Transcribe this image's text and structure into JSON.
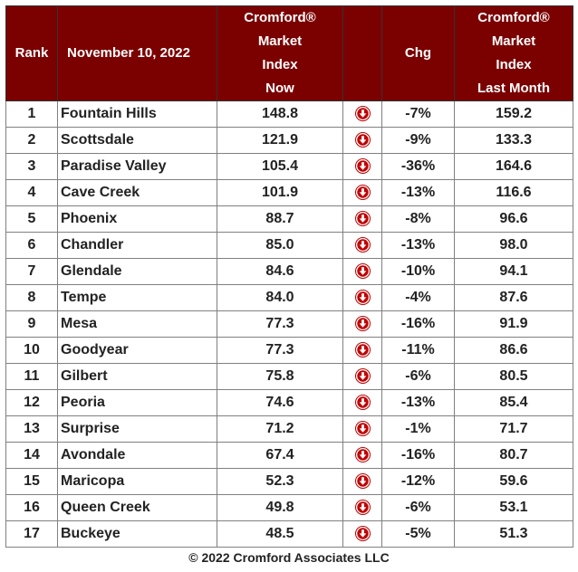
{
  "header": {
    "rank": "Rank",
    "date": "November 10, 2022",
    "index_now": [
      "Cromford®",
      "Market",
      "Index",
      "Now"
    ],
    "chg": "Chg",
    "index_last": [
      "Cromford®",
      "Market",
      "Index",
      "Last Month"
    ]
  },
  "rows": [
    {
      "rank": "1",
      "city": "Fountain Hills",
      "now": "148.8",
      "trend": "down",
      "chg": "-7%",
      "last": "159.2"
    },
    {
      "rank": "2",
      "city": "Scottsdale",
      "now": "121.9",
      "trend": "down",
      "chg": "-9%",
      "last": "133.3"
    },
    {
      "rank": "3",
      "city": "Paradise Valley",
      "now": "105.4",
      "trend": "down",
      "chg": "-36%",
      "last": "164.6"
    },
    {
      "rank": "4",
      "city": "Cave Creek",
      "now": "101.9",
      "trend": "down",
      "chg": "-13%",
      "last": "116.6"
    },
    {
      "rank": "5",
      "city": "Phoenix",
      "now": "88.7",
      "trend": "down",
      "chg": "-8%",
      "last": "96.6"
    },
    {
      "rank": "6",
      "city": "Chandler",
      "now": "85.0",
      "trend": "down",
      "chg": "-13%",
      "last": "98.0"
    },
    {
      "rank": "7",
      "city": "Glendale",
      "now": "84.6",
      "trend": "down",
      "chg": "-10%",
      "last": "94.1"
    },
    {
      "rank": "8",
      "city": "Tempe",
      "now": "84.0",
      "trend": "down",
      "chg": "-4%",
      "last": "87.6"
    },
    {
      "rank": "9",
      "city": "Mesa",
      "now": "77.3",
      "trend": "down",
      "chg": "-16%",
      "last": "91.9"
    },
    {
      "rank": "10",
      "city": "Goodyear",
      "now": "77.3",
      "trend": "down",
      "chg": "-11%",
      "last": "86.6"
    },
    {
      "rank": "11",
      "city": "Gilbert",
      "now": "75.8",
      "trend": "down",
      "chg": "-6%",
      "last": "80.5"
    },
    {
      "rank": "12",
      "city": "Peoria",
      "now": "74.6",
      "trend": "down",
      "chg": "-13%",
      "last": "85.4"
    },
    {
      "rank": "13",
      "city": "Surprise",
      "now": "71.2",
      "trend": "down",
      "chg": "-1%",
      "last": "71.7"
    },
    {
      "rank": "14",
      "city": "Avondale",
      "now": "67.4",
      "trend": "down",
      "chg": "-16%",
      "last": "80.7"
    },
    {
      "rank": "15",
      "city": "Maricopa",
      "now": "52.3",
      "trend": "down",
      "chg": "-12%",
      "last": "59.6"
    },
    {
      "rank": "16",
      "city": "Queen Creek",
      "now": "49.8",
      "trend": "down",
      "chg": "-6%",
      "last": "53.1"
    },
    {
      "rank": "17",
      "city": "Buckeye",
      "now": "48.5",
      "trend": "down",
      "chg": "-5%",
      "last": "51.3"
    }
  ],
  "colors": {
    "header_bg": "#7b0000",
    "header_text": "#ffffff",
    "arrow": "#c00000"
  },
  "icons": {
    "trend_down": "red-down-arrow-icon"
  },
  "footer": "© 2022 Cromford Associates LLC"
}
